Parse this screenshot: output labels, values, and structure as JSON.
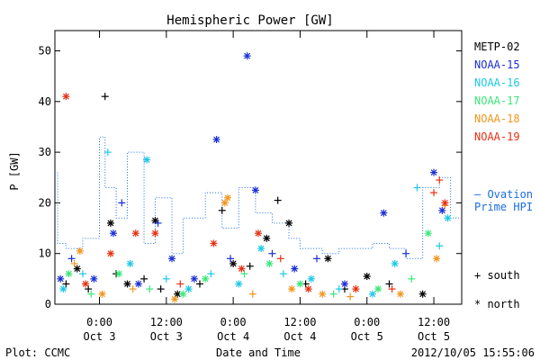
{
  "chart_data": {
    "type": "scatter",
    "title": "Hemispheric Power [GW]",
    "xlabel": "Date and Time",
    "ylabel": "P [GW]",
    "ylim": [
      0,
      54
    ],
    "yticks": [
      0,
      10,
      20,
      30,
      40,
      50
    ],
    "xlim": [
      "2012-10-02T16:00",
      "2012-10-05T17:00"
    ],
    "xticks": [
      {
        "x": "2012-10-03T00:00",
        "time": "0:00",
        "date": "Oct 3"
      },
      {
        "x": "2012-10-03T12:00",
        "time": "12:00",
        "date": "Oct 3"
      },
      {
        "x": "2012-10-04T00:00",
        "time": "0:00",
        "date": "Oct 4"
      },
      {
        "x": "2012-10-04T12:00",
        "time": "12:00",
        "date": "Oct 4"
      },
      {
        "x": "2012-10-05T00:00",
        "time": "0:00",
        "date": "Oct 5"
      },
      {
        "x": "2012-10-05T12:00",
        "time": "12:00",
        "date": "Oct 5"
      }
    ],
    "legend": {
      "placement": "right",
      "markers": [
        {
          "symbol": "+",
          "label": "south"
        },
        {
          "symbol": "*",
          "label": "north"
        }
      ]
    },
    "series": [
      {
        "name": "METP-02",
        "color": "#000000",
        "points": [
          {
            "x": "2012-10-02T18:00",
            "y": 4,
            "m": "+"
          },
          {
            "x": "2012-10-02T20:00",
            "y": 7,
            "m": "*"
          },
          {
            "x": "2012-10-02T22:00",
            "y": 3,
            "m": "+"
          },
          {
            "x": "2012-10-03T01:00",
            "y": 41,
            "m": "+"
          },
          {
            "x": "2012-10-03T02:00",
            "y": 16,
            "m": "*"
          },
          {
            "x": "2012-10-03T03:00",
            "y": 6,
            "m": "+"
          },
          {
            "x": "2012-10-03T05:00",
            "y": 4,
            "m": "*"
          },
          {
            "x": "2012-10-03T08:00",
            "y": 5,
            "m": "+"
          },
          {
            "x": "2012-10-03T10:00",
            "y": 16.5,
            "m": "*"
          },
          {
            "x": "2012-10-03T11:00",
            "y": 3,
            "m": "+"
          },
          {
            "x": "2012-10-03T14:00",
            "y": 2,
            "m": "*"
          },
          {
            "x": "2012-10-03T18:00",
            "y": 4,
            "m": "+"
          },
          {
            "x": "2012-10-03T22:00",
            "y": 18.5,
            "m": "+"
          },
          {
            "x": "2012-10-04T00:00",
            "y": 8,
            "m": "*"
          },
          {
            "x": "2012-10-04T03:00",
            "y": 7.5,
            "m": "+"
          },
          {
            "x": "2012-10-04T06:00",
            "y": 13,
            "m": "*"
          },
          {
            "x": "2012-10-04T08:00",
            "y": 20.5,
            "m": "+"
          },
          {
            "x": "2012-10-04T10:00",
            "y": 16,
            "m": "*"
          },
          {
            "x": "2012-10-04T13:00",
            "y": 4,
            "m": "+"
          },
          {
            "x": "2012-10-04T17:00",
            "y": 9,
            "m": "*"
          },
          {
            "x": "2012-10-04T20:00",
            "y": 3,
            "m": "+"
          },
          {
            "x": "2012-10-05T00:00",
            "y": 5.5,
            "m": "*"
          },
          {
            "x": "2012-10-05T04:00",
            "y": 4,
            "m": "+"
          },
          {
            "x": "2012-10-05T10:00",
            "y": 2,
            "m": "*"
          }
        ]
      },
      {
        "name": "NOAA-15",
        "color": "#1a2fd6",
        "points": [
          {
            "x": "2012-10-02T17:00",
            "y": 5,
            "m": "*"
          },
          {
            "x": "2012-10-02T19:00",
            "y": 9,
            "m": "+"
          },
          {
            "x": "2012-10-02T23:00",
            "y": 5,
            "m": "*"
          },
          {
            "x": "2012-10-03T02:30",
            "y": 14,
            "m": "*"
          },
          {
            "x": "2012-10-03T04:00",
            "y": 20,
            "m": "+"
          },
          {
            "x": "2012-10-03T07:00",
            "y": 4,
            "m": "*"
          },
          {
            "x": "2012-10-03T10:30",
            "y": 16,
            "m": "+"
          },
          {
            "x": "2012-10-03T13:00",
            "y": 9,
            "m": "*"
          },
          {
            "x": "2012-10-03T17:00",
            "y": 5,
            "m": "*"
          },
          {
            "x": "2012-10-03T21:00",
            "y": 32.5,
            "m": "*"
          },
          {
            "x": "2012-10-03T23:30",
            "y": 9,
            "m": "+"
          },
          {
            "x": "2012-10-04T02:30",
            "y": 49,
            "m": "*"
          },
          {
            "x": "2012-10-04T04:00",
            "y": 22.5,
            "m": "*"
          },
          {
            "x": "2012-10-04T07:00",
            "y": 10,
            "m": "+"
          },
          {
            "x": "2012-10-04T11:00",
            "y": 7,
            "m": "*"
          },
          {
            "x": "2012-10-04T15:00",
            "y": 9,
            "m": "+"
          },
          {
            "x": "2012-10-04T20:00",
            "y": 4,
            "m": "*"
          },
          {
            "x": "2012-10-05T03:00",
            "y": 18,
            "m": "*"
          },
          {
            "x": "2012-10-05T07:00",
            "y": 10,
            "m": "+"
          },
          {
            "x": "2012-10-05T12:00",
            "y": 26,
            "m": "*"
          },
          {
            "x": "2012-10-05T13:30",
            "y": 18.5,
            "m": "*"
          }
        ]
      },
      {
        "name": "NOAA-16",
        "color": "#1ec8e6",
        "points": [
          {
            "x": "2012-10-02T17:30",
            "y": 3,
            "m": "*"
          },
          {
            "x": "2012-10-02T21:00",
            "y": 6,
            "m": "+"
          },
          {
            "x": "2012-10-03T01:30",
            "y": 30,
            "m": "+"
          },
          {
            "x": "2012-10-03T05:30",
            "y": 8,
            "m": "*"
          },
          {
            "x": "2012-10-03T08:30",
            "y": 28.5,
            "m": "*"
          },
          {
            "x": "2012-10-03T12:00",
            "y": 5,
            "m": "+"
          },
          {
            "x": "2012-10-03T16:00",
            "y": 3,
            "m": "*"
          },
          {
            "x": "2012-10-03T20:00",
            "y": 6,
            "m": "+"
          },
          {
            "x": "2012-10-04T01:00",
            "y": 4,
            "m": "*"
          },
          {
            "x": "2012-10-04T05:00",
            "y": 11,
            "m": "*"
          },
          {
            "x": "2012-10-04T09:00",
            "y": 6,
            "m": "+"
          },
          {
            "x": "2012-10-04T14:00",
            "y": 5,
            "m": "*"
          },
          {
            "x": "2012-10-04T19:00",
            "y": 3,
            "m": "+"
          },
          {
            "x": "2012-10-05T01:00",
            "y": 2,
            "m": "*"
          },
          {
            "x": "2012-10-05T05:00",
            "y": 8,
            "m": "*"
          },
          {
            "x": "2012-10-05T09:00",
            "y": 23,
            "m": "+"
          },
          {
            "x": "2012-10-05T13:00",
            "y": 11.5,
            "m": "+"
          },
          {
            "x": "2012-10-05T14:30",
            "y": 17,
            "m": "*"
          }
        ]
      },
      {
        "name": "NOAA-17",
        "color": "#3de67a",
        "points": [
          {
            "x": "2012-10-02T18:30",
            "y": 6,
            "m": "*"
          },
          {
            "x": "2012-10-02T22:30",
            "y": 2,
            "m": "+"
          },
          {
            "x": "2012-10-03T03:30",
            "y": 6,
            "m": "*"
          },
          {
            "x": "2012-10-03T09:00",
            "y": 3,
            "m": "+"
          },
          {
            "x": "2012-10-03T15:00",
            "y": 2,
            "m": "*"
          },
          {
            "x": "2012-10-03T19:00",
            "y": 5,
            "m": "*"
          },
          {
            "x": "2012-10-04T02:00",
            "y": 6,
            "m": "+"
          },
          {
            "x": "2012-10-04T06:30",
            "y": 8,
            "m": "*"
          },
          {
            "x": "2012-10-04T12:00",
            "y": 4,
            "m": "*"
          },
          {
            "x": "2012-10-04T18:00",
            "y": 2,
            "m": "+"
          },
          {
            "x": "2012-10-05T02:00",
            "y": 3,
            "m": "*"
          },
          {
            "x": "2012-10-05T08:00",
            "y": 5,
            "m": "+"
          },
          {
            "x": "2012-10-05T11:00",
            "y": 14,
            "m": "*"
          }
        ]
      },
      {
        "name": "NOAA-18",
        "color": "#f0961e",
        "points": [
          {
            "x": "2012-10-02T19:30",
            "y": 8,
            "m": "+"
          },
          {
            "x": "2012-10-02T20:30",
            "y": 10.5,
            "m": "*"
          },
          {
            "x": "2012-10-03T00:30",
            "y": 2,
            "m": "*"
          },
          {
            "x": "2012-10-03T06:00",
            "y": 3,
            "m": "+"
          },
          {
            "x": "2012-10-03T13:30",
            "y": 1,
            "m": "*"
          },
          {
            "x": "2012-10-03T22:30",
            "y": 20,
            "m": "*"
          },
          {
            "x": "2012-10-03T23:00",
            "y": 21,
            "m": "*"
          },
          {
            "x": "2012-10-04T03:30",
            "y": 2,
            "m": "+"
          },
          {
            "x": "2012-10-04T10:30",
            "y": 3,
            "m": "*"
          },
          {
            "x": "2012-10-04T16:00",
            "y": 2,
            "m": "*"
          },
          {
            "x": "2012-10-04T21:00",
            "y": 1.5,
            "m": "+"
          },
          {
            "x": "2012-10-05T06:00",
            "y": 2,
            "m": "*"
          },
          {
            "x": "2012-10-05T12:30",
            "y": 9,
            "m": "*"
          },
          {
            "x": "2012-10-05T14:00",
            "y": 19.5,
            "m": "+"
          }
        ]
      },
      {
        "name": "NOAA-19",
        "color": "#e63214",
        "points": [
          {
            "x": "2012-10-02T18:00",
            "y": 41,
            "m": "*"
          },
          {
            "x": "2012-10-02T21:30",
            "y": 4,
            "m": "*"
          },
          {
            "x": "2012-10-03T02:00",
            "y": 10,
            "m": "*"
          },
          {
            "x": "2012-10-03T06:30",
            "y": 14,
            "m": "*"
          },
          {
            "x": "2012-10-03T10:00",
            "y": 14,
            "m": "*"
          },
          {
            "x": "2012-10-03T14:30",
            "y": 4,
            "m": "+"
          },
          {
            "x": "2012-10-03T20:30",
            "y": 12,
            "m": "*"
          },
          {
            "x": "2012-10-04T01:30",
            "y": 7,
            "m": "*"
          },
          {
            "x": "2012-10-04T04:30",
            "y": 14,
            "m": "*"
          },
          {
            "x": "2012-10-04T08:30",
            "y": 9,
            "m": "+"
          },
          {
            "x": "2012-10-04T13:30",
            "y": 3,
            "m": "*"
          },
          {
            "x": "2012-10-04T22:00",
            "y": 3,
            "m": "*"
          },
          {
            "x": "2012-10-05T04:30",
            "y": 3,
            "m": "+"
          },
          {
            "x": "2012-10-05T12:00",
            "y": 22,
            "m": "+"
          },
          {
            "x": "2012-10-05T13:00",
            "y": 24.5,
            "m": "+"
          },
          {
            "x": "2012-10-05T14:00",
            "y": 20,
            "m": "*"
          }
        ]
      }
    ],
    "reference_series": [
      {
        "name": "Ovation Prime HPI",
        "label_line1": "— Ovation",
        "label_line2": "Prime HPI",
        "color": "#1a6ee0",
        "dotted_x": [
          "2012-10-02T16:30",
          "2012-10-02T18:00",
          "2012-10-02T21:00",
          "2012-10-03T00:00",
          "2012-10-03T01:00",
          "2012-10-03T03:00",
          "2012-10-03T05:00",
          "2012-10-03T08:00",
          "2012-10-03T10:00",
          "2012-10-03T13:00",
          "2012-10-03T15:00",
          "2012-10-03T19:00",
          "2012-10-03T22:00",
          "2012-10-04T01:00",
          "2012-10-04T04:00",
          "2012-10-04T07:00",
          "2012-10-04T10:00",
          "2012-10-04T12:00",
          "2012-10-04T16:00",
          "2012-10-04T19:00",
          "2012-10-05T01:00",
          "2012-10-05T04:00",
          "2012-10-05T07:00",
          "2012-10-05T10:00",
          "2012-10-05T13:00",
          "2012-10-05T15:00",
          "2012-10-05T16:30"
        ],
        "dotted_y": [
          26,
          12,
          11,
          13,
          33,
          23,
          17,
          30,
          12,
          21,
          10,
          17,
          22,
          15,
          23,
          18,
          16,
          13,
          11,
          10,
          11,
          12,
          11,
          9,
          23,
          25,
          17
        ]
      }
    ]
  },
  "footer": {
    "plot_credit": "Plot: CCMC",
    "timestamp": "2012/10/05 15:55:06"
  }
}
